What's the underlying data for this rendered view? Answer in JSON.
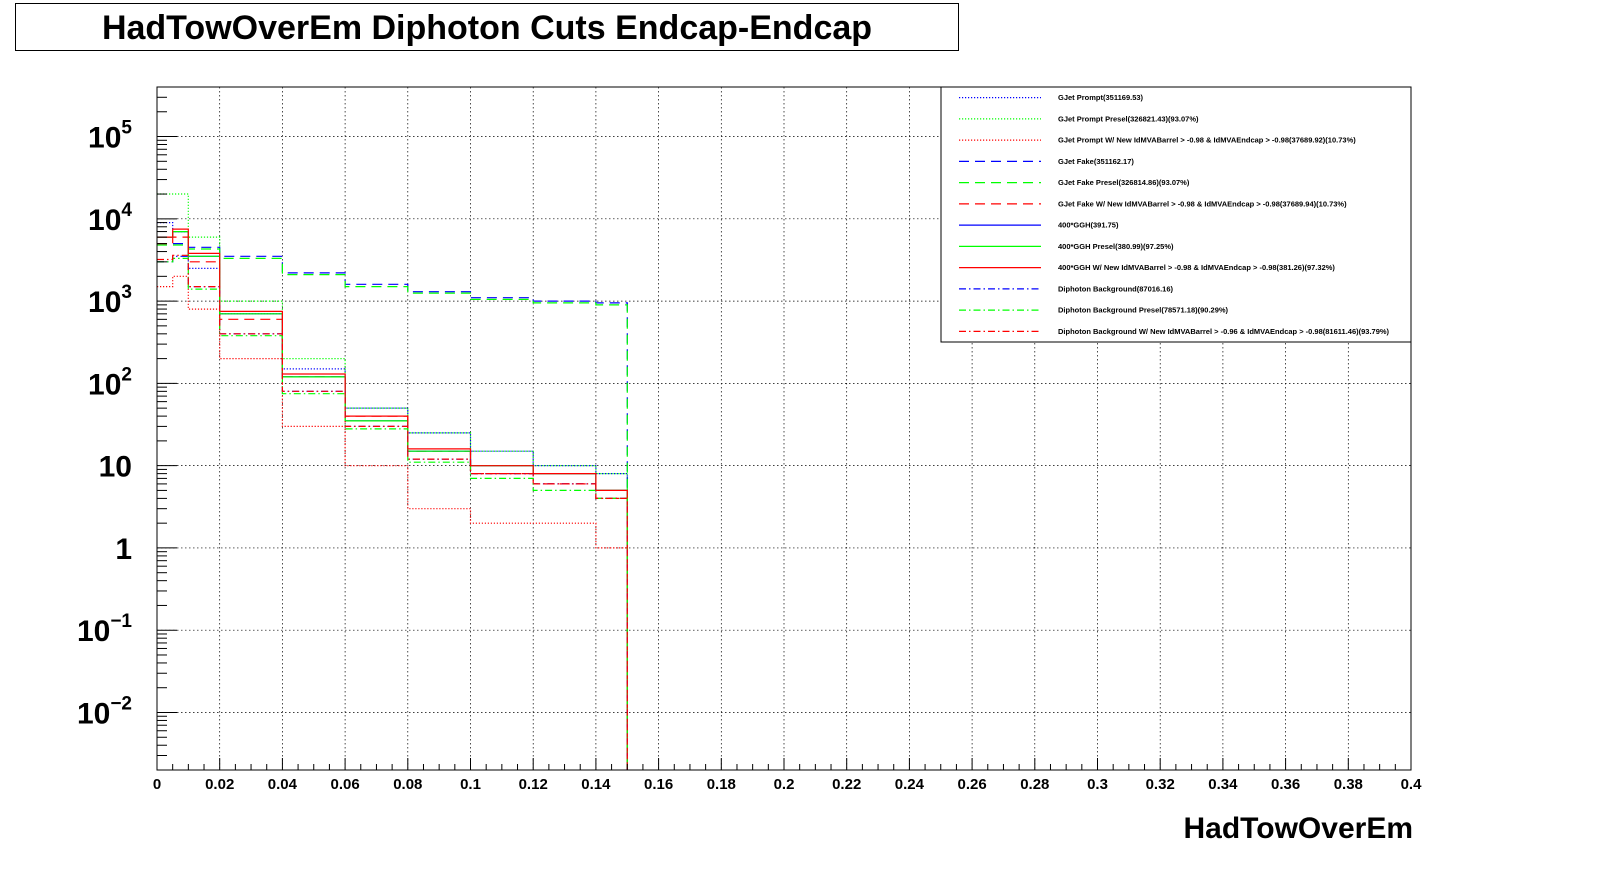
{
  "title": "HadTowOverEm Diphoton Cuts Endcap-Endcap",
  "colors": {
    "blue": "#0000ff",
    "green": "#00ff00",
    "red": "#ff0000"
  },
  "chart_data": {
    "type": "line",
    "title": "HadTowOverEm Diphoton Cuts Endcap-Endcap",
    "xlabel": "HadTowOverEm",
    "ylabel": "",
    "xlim": [
      0,
      0.4
    ],
    "ylim": [
      0.002,
      400000
    ],
    "ylog": true,
    "grid": true,
    "legend_position": "top-right",
    "x_ticks": [
      "0",
      "0.02",
      "0.04",
      "0.06",
      "0.08",
      "0.1",
      "0.12",
      "0.14",
      "0.16",
      "0.18",
      "0.2",
      "0.22",
      "0.24",
      "0.26",
      "0.28",
      "0.3",
      "0.32",
      "0.34",
      "0.36",
      "0.38",
      "0.4"
    ],
    "y_ticks": [
      {
        "value": 100000,
        "base": "10",
        "exp": "5"
      },
      {
        "value": 10000,
        "base": "10",
        "exp": "4"
      },
      {
        "value": 1000,
        "base": "10",
        "exp": "3"
      },
      {
        "value": 100,
        "base": "10",
        "exp": "2"
      },
      {
        "value": 10,
        "base": "10",
        "exp": ""
      },
      {
        "value": 1,
        "base": "1",
        "exp": ""
      },
      {
        "value": 0.1,
        "base": "10",
        "exp": "−1"
      },
      {
        "value": 0.01,
        "base": "10",
        "exp": "−2"
      }
    ],
    "series": [
      {
        "name": "GJet Prompt(351169.53)",
        "color": "#0000ff",
        "style": "dotted",
        "x": [
          0,
          0.005,
          0.01,
          0.02,
          0.04,
          0.06,
          0.08,
          0.1,
          0.12,
          0.14,
          0.15
        ],
        "y": [
          9000,
          7000,
          2500,
          700,
          150,
          50,
          25,
          15,
          10,
          8,
          5
        ]
      },
      {
        "name": "GJet Prompt Presel(326821.43)(93.07%)",
        "color": "#00ff00",
        "style": "dotted",
        "x": [
          0,
          0.005,
          0.01,
          0.02,
          0.04,
          0.06,
          0.08,
          0.1,
          0.12,
          0.14,
          0.15
        ],
        "y": [
          20000,
          20000,
          6000,
          1000,
          200,
          50,
          25,
          15,
          10,
          8,
          5
        ]
      },
      {
        "name": "GJet Prompt W/ New IdMVABarrel > -0.98 & IdMVAEndcap > -0.98(37689.92)(10.73%)",
        "color": "#ff0000",
        "style": "dotted",
        "x": [
          0,
          0.005,
          0.01,
          0.02,
          0.04,
          0.06,
          0.08,
          0.1,
          0.12,
          0.14,
          0.15
        ],
        "y": [
          1500,
          2000,
          800,
          200,
          30,
          10,
          3,
          2,
          2,
          1,
          1
        ]
      },
      {
        "name": "GJet Fake(351162.17)",
        "color": "#0000ff",
        "style": "dashed",
        "x": [
          0,
          0.005,
          0.01,
          0.02,
          0.04,
          0.06,
          0.08,
          0.1,
          0.12,
          0.14,
          0.15
        ],
        "y": [
          5000,
          5000,
          4500,
          3500,
          2200,
          1600,
          1300,
          1100,
          1000,
          950,
          900
        ]
      },
      {
        "name": "GJet Fake Presel(326814.86)(93.07%)",
        "color": "#00ff00",
        "style": "dashed",
        "x": [
          0,
          0.005,
          0.01,
          0.02,
          0.04,
          0.06,
          0.08,
          0.1,
          0.12,
          0.14,
          0.15
        ],
        "y": [
          4800,
          4800,
          4300,
          3300,
          2100,
          1500,
          1250,
          1050,
          950,
          900,
          850
        ]
      },
      {
        "name": "GJet Fake W/ New IdMVABarrel > -0.98 & IdMVAEndcap > -0.98(37689.94)(10.73%)",
        "color": "#ff0000",
        "style": "dashed",
        "x": [
          0,
          0.005,
          0.01,
          0.02,
          0.04,
          0.06,
          0.08,
          0.1,
          0.12,
          0.14,
          0.15
        ],
        "y": [
          5000,
          6000,
          3000,
          600,
          120,
          40,
          15,
          8,
          6,
          4,
          3
        ]
      },
      {
        "name": "400*GGH(391.75)",
        "color": "#0000ff",
        "style": "solid",
        "x": [
          0,
          0.005,
          0.01,
          0.02,
          0.04,
          0.06,
          0.08,
          0.1,
          0.12,
          0.14,
          0.15
        ],
        "y": [
          6000,
          7000,
          3500,
          700,
          120,
          35,
          15,
          10,
          8,
          5,
          4
        ]
      },
      {
        "name": "400*GGH Presel(380.99)(97.25%)",
        "color": "#00ff00",
        "style": "solid",
        "x": [
          0,
          0.005,
          0.01,
          0.02,
          0.04,
          0.06,
          0.08,
          0.1,
          0.12,
          0.14,
          0.15
        ],
        "y": [
          6000,
          7000,
          3500,
          700,
          120,
          35,
          15,
          10,
          8,
          5,
          4
        ]
      },
      {
        "name": "400*GGH W/ New IdMVABarrel > -0.98 & IdMVAEndcap > -0.98(381.26)(97.32%)",
        "color": "#ff0000",
        "style": "solid",
        "x": [
          0,
          0.005,
          0.01,
          0.02,
          0.04,
          0.06,
          0.08,
          0.1,
          0.12,
          0.14,
          0.15
        ],
        "y": [
          6000,
          7500,
          3800,
          750,
          130,
          40,
          16,
          10,
          8,
          5,
          4
        ]
      },
      {
        "name": "Diphoton Background(87016.16)",
        "color": "#0000ff",
        "style": "dashdot",
        "x": [
          0,
          0.005,
          0.01,
          0.02,
          0.04,
          0.06,
          0.08,
          0.1,
          0.12,
          0.14,
          0.15
        ],
        "y": [
          3000,
          3500,
          1500,
          400,
          80,
          30,
          12,
          8,
          6,
          4,
          3
        ]
      },
      {
        "name": "Diphoton Background Presel(78571.18)(90.29%)",
        "color": "#00ff00",
        "style": "dashdot",
        "x": [
          0,
          0.005,
          0.01,
          0.02,
          0.04,
          0.06,
          0.08,
          0.1,
          0.12,
          0.14,
          0.15
        ],
        "y": [
          3000,
          3300,
          1400,
          380,
          75,
          28,
          11,
          7,
          5,
          4,
          3
        ]
      },
      {
        "name": "Diphoton Background W/ New IdMVABarrel > -0.96 & IdMVAEndcap > -0.98(81611.46)(93.79%)",
        "color": "#ff0000",
        "style": "dashdot",
        "x": [
          0,
          0.005,
          0.01,
          0.02,
          0.04,
          0.06,
          0.08,
          0.1,
          0.12,
          0.14,
          0.15
        ],
        "y": [
          3200,
          3600,
          1500,
          400,
          80,
          30,
          12,
          8,
          6,
          4,
          3
        ]
      }
    ]
  }
}
